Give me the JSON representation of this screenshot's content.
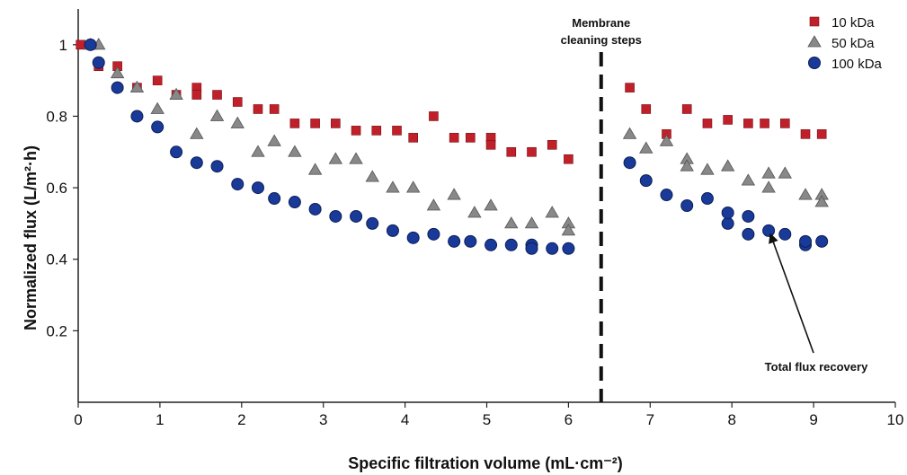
{
  "chart_data": {
    "type": "scatter",
    "xlabel": "Specific filtration volume (mL·cm⁻²)",
    "ylabel": "Normalized flux (L/m²·h)",
    "xlim": [
      0,
      10
    ],
    "ylim": [
      0,
      1.1
    ],
    "xticks": [
      "0",
      "1",
      "2",
      "3",
      "4",
      "5",
      "6",
      "7",
      "8",
      "9",
      "10"
    ],
    "yticks": [
      "0.2",
      "0.4",
      "0.6",
      "0.8",
      "1"
    ],
    "grid": false,
    "legend_position": "top-right",
    "divider": {
      "x": 6.4,
      "label_line1": "Membrane",
      "label_line2": "cleaning steps"
    },
    "annotation": {
      "text": "Total flux recovery",
      "points_to": [
        8.45,
        0.49
      ]
    },
    "series": [
      {
        "name": "10 kDa",
        "marker": "square",
        "color": "#c0202a",
        "points": [
          [
            0.03,
            1.0
          ],
          [
            0.25,
            0.94
          ],
          [
            0.48,
            0.94
          ],
          [
            0.72,
            0.88
          ],
          [
            0.97,
            0.9
          ],
          [
            1.2,
            0.86
          ],
          [
            1.45,
            0.88
          ],
          [
            1.45,
            0.86
          ],
          [
            1.7,
            0.86
          ],
          [
            1.95,
            0.84
          ],
          [
            2.2,
            0.82
          ],
          [
            2.4,
            0.82
          ],
          [
            2.65,
            0.78
          ],
          [
            2.9,
            0.78
          ],
          [
            3.15,
            0.78
          ],
          [
            3.4,
            0.76
          ],
          [
            3.65,
            0.76
          ],
          [
            3.9,
            0.76
          ],
          [
            4.1,
            0.74
          ],
          [
            4.35,
            0.8
          ],
          [
            4.6,
            0.74
          ],
          [
            4.8,
            0.74
          ],
          [
            5.05,
            0.74
          ],
          [
            5.05,
            0.72
          ],
          [
            5.3,
            0.7
          ],
          [
            5.55,
            0.7
          ],
          [
            5.8,
            0.72
          ],
          [
            6.0,
            0.68
          ],
          [
            6.75,
            0.88
          ],
          [
            6.95,
            0.82
          ],
          [
            7.2,
            0.75
          ],
          [
            7.45,
            0.82
          ],
          [
            7.7,
            0.78
          ],
          [
            7.95,
            0.79
          ],
          [
            8.2,
            0.78
          ],
          [
            8.4,
            0.78
          ],
          [
            8.65,
            0.78
          ],
          [
            8.9,
            0.75
          ],
          [
            9.1,
            0.75
          ]
        ]
      },
      {
        "name": "50 kDa",
        "marker": "triangle",
        "color": "#888888",
        "points": [
          [
            0.15,
            1.0
          ],
          [
            0.25,
            1.0
          ],
          [
            0.48,
            0.92
          ],
          [
            0.72,
            0.88
          ],
          [
            0.97,
            0.82
          ],
          [
            1.2,
            0.86
          ],
          [
            1.45,
            0.75
          ],
          [
            1.7,
            0.8
          ],
          [
            1.95,
            0.78
          ],
          [
            2.2,
            0.7
          ],
          [
            2.4,
            0.73
          ],
          [
            2.65,
            0.7
          ],
          [
            2.9,
            0.65
          ],
          [
            3.15,
            0.68
          ],
          [
            3.4,
            0.68
          ],
          [
            3.6,
            0.63
          ],
          [
            3.85,
            0.6
          ],
          [
            4.1,
            0.6
          ],
          [
            4.35,
            0.55
          ],
          [
            4.6,
            0.58
          ],
          [
            4.85,
            0.53
          ],
          [
            5.05,
            0.55
          ],
          [
            5.3,
            0.5
          ],
          [
            5.55,
            0.5
          ],
          [
            5.8,
            0.53
          ],
          [
            6.0,
            0.5
          ],
          [
            6.0,
            0.48
          ],
          [
            6.75,
            0.75
          ],
          [
            6.95,
            0.71
          ],
          [
            7.2,
            0.73
          ],
          [
            7.45,
            0.68
          ],
          [
            7.45,
            0.66
          ],
          [
            7.7,
            0.65
          ],
          [
            7.95,
            0.66
          ],
          [
            8.2,
            0.62
          ],
          [
            8.45,
            0.64
          ],
          [
            8.45,
            0.6
          ],
          [
            8.65,
            0.64
          ],
          [
            8.9,
            0.58
          ],
          [
            9.1,
            0.58
          ],
          [
            9.1,
            0.56
          ]
        ]
      },
      {
        "name": "100 kDa",
        "marker": "circle",
        "color": "#1a3a9a",
        "points": [
          [
            0.15,
            1.0
          ],
          [
            0.25,
            0.95
          ],
          [
            0.48,
            0.88
          ],
          [
            0.72,
            0.8
          ],
          [
            0.97,
            0.77
          ],
          [
            1.2,
            0.7
          ],
          [
            1.45,
            0.67
          ],
          [
            1.7,
            0.66
          ],
          [
            1.95,
            0.61
          ],
          [
            2.2,
            0.6
          ],
          [
            2.4,
            0.57
          ],
          [
            2.65,
            0.56
          ],
          [
            2.9,
            0.54
          ],
          [
            3.15,
            0.52
          ],
          [
            3.4,
            0.52
          ],
          [
            3.6,
            0.5
          ],
          [
            3.85,
            0.48
          ],
          [
            4.1,
            0.46
          ],
          [
            4.35,
            0.47
          ],
          [
            4.6,
            0.45
          ],
          [
            4.8,
            0.45
          ],
          [
            5.05,
            0.44
          ],
          [
            5.3,
            0.44
          ],
          [
            5.55,
            0.44
          ],
          [
            5.55,
            0.43
          ],
          [
            5.8,
            0.43
          ],
          [
            6.0,
            0.43
          ],
          [
            6.75,
            0.67
          ],
          [
            6.95,
            0.62
          ],
          [
            7.2,
            0.58
          ],
          [
            7.45,
            0.55
          ],
          [
            7.7,
            0.57
          ],
          [
            7.95,
            0.5
          ],
          [
            7.95,
            0.53
          ],
          [
            8.2,
            0.52
          ],
          [
            8.2,
            0.47
          ],
          [
            8.45,
            0.48
          ],
          [
            8.65,
            0.47
          ],
          [
            8.9,
            0.44
          ],
          [
            8.9,
            0.45
          ],
          [
            9.1,
            0.45
          ]
        ]
      }
    ]
  }
}
